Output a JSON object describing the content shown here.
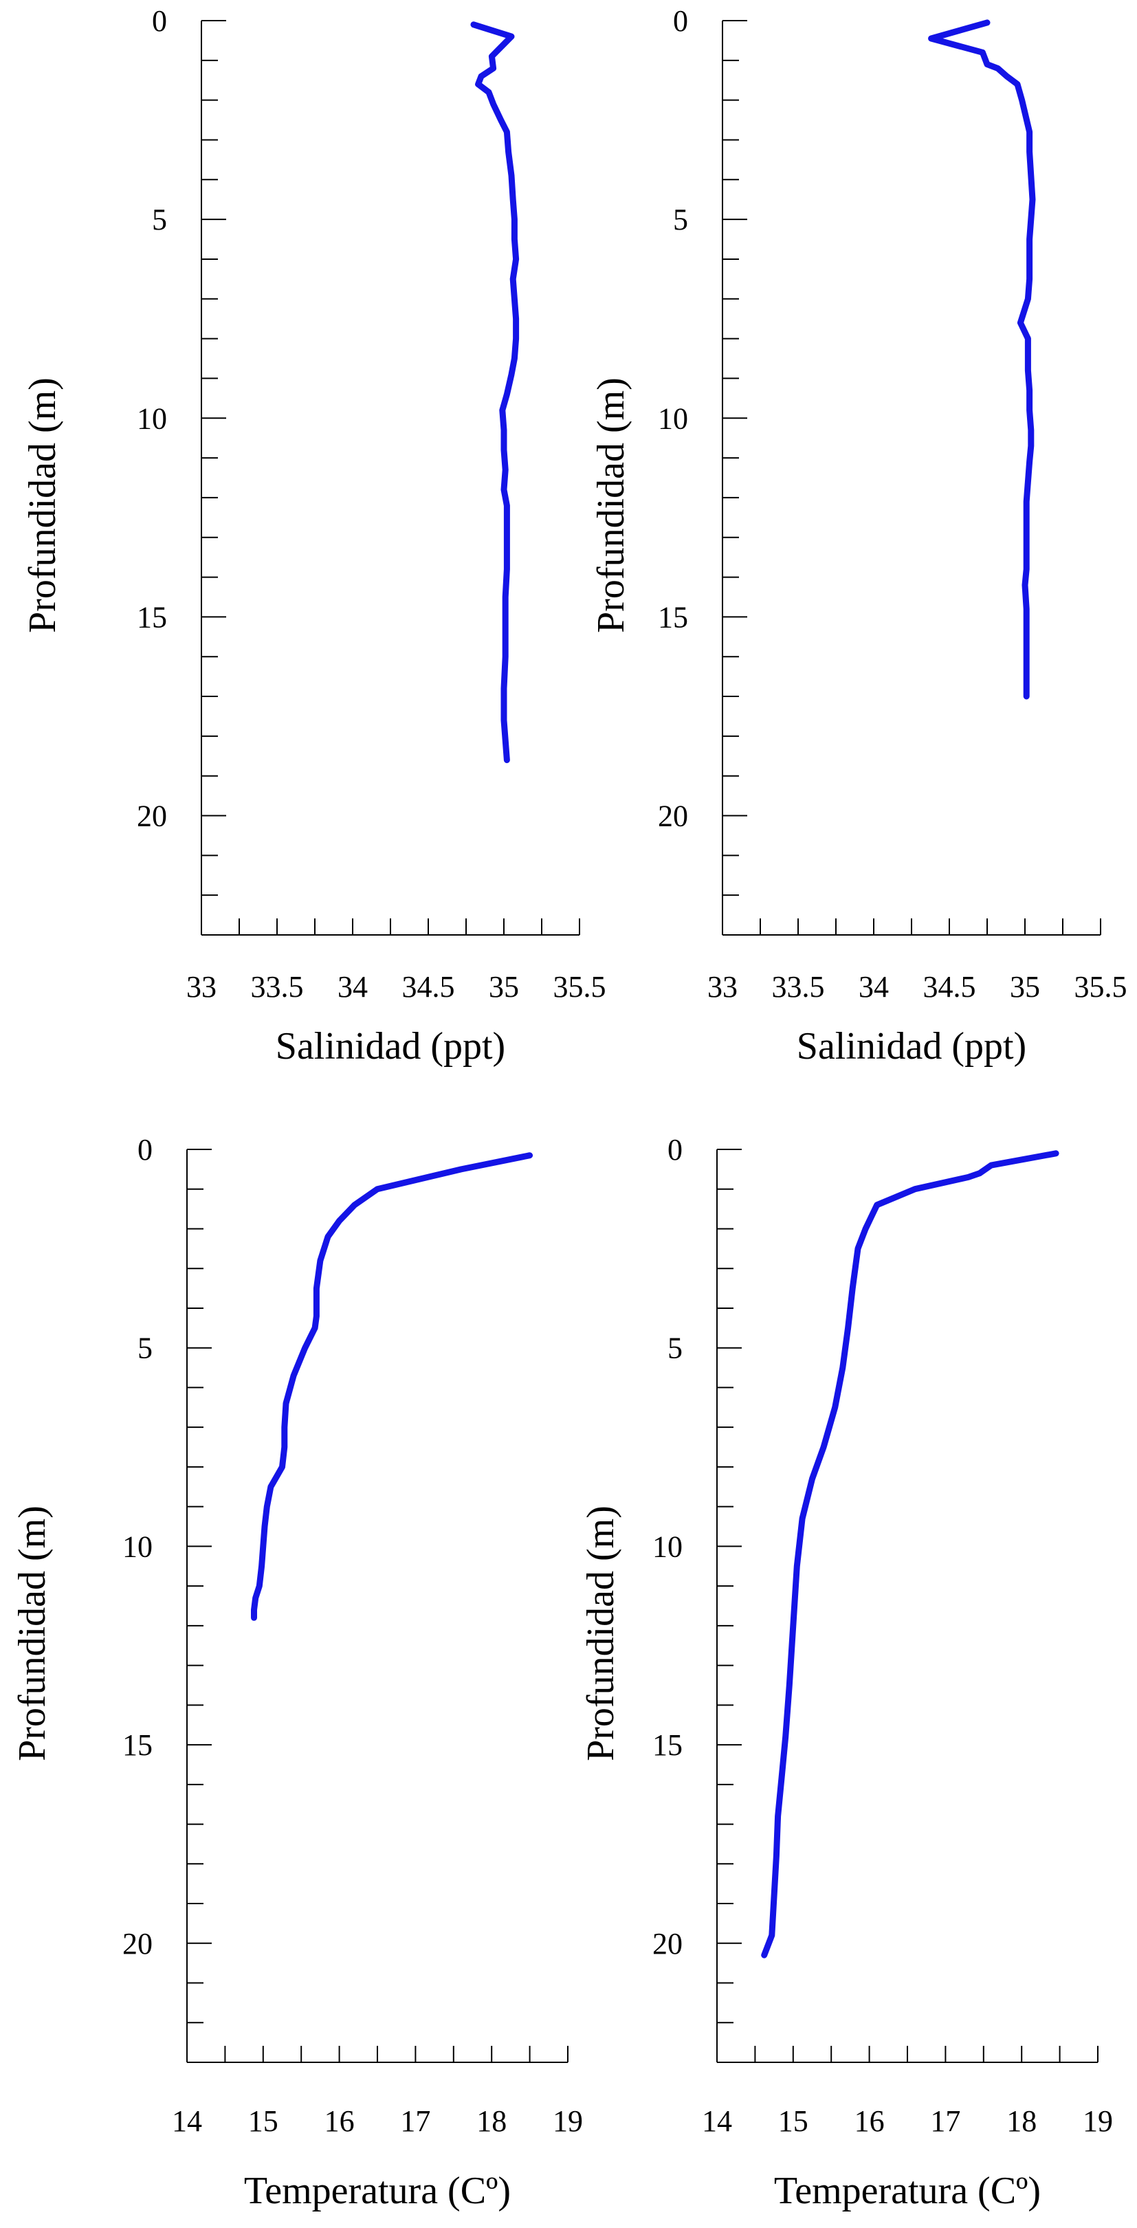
{
  "colors": {
    "series": "#1414e6",
    "axis": "#000000",
    "background": "#ffffff"
  },
  "chart_data": [
    {
      "type": "line",
      "orientation": "depth-profile",
      "xlabel": "Salinidad (ppt)",
      "ylabel": "Profundidad (m)",
      "xlim": [
        33,
        35.5
      ],
      "ylim": [
        0,
        23
      ],
      "y_inverted": true,
      "x_ticks": [
        "33",
        "33.5",
        "34",
        "34.5",
        "35",
        "35.5"
      ],
      "y_ticks": [
        "0",
        "5",
        "10",
        "15",
        "20"
      ],
      "grid": false,
      "series": [
        {
          "x": [
            34.8,
            35.05,
            34.92,
            34.93,
            34.85,
            34.83,
            34.9,
            34.93,
            34.98,
            35.02,
            35.03,
            35.05,
            35.06,
            35.07,
            35.07,
            35.08,
            35.06,
            35.07,
            35.08,
            35.08,
            35.07,
            35.05,
            35.02,
            34.99,
            35.0,
            35.0,
            35.01,
            35.0,
            35.02,
            35.02,
            35.02,
            35.02,
            35.01,
            35.01,
            35.01,
            35.0,
            35.0,
            35.02
          ],
          "y": [
            0.1,
            0.4,
            0.9,
            1.2,
            1.4,
            1.6,
            1.8,
            2.1,
            2.5,
            2.8,
            3.3,
            3.9,
            4.5,
            5.0,
            5.5,
            6.0,
            6.5,
            7.0,
            7.5,
            8.0,
            8.5,
            8.9,
            9.4,
            9.8,
            10.3,
            10.8,
            11.3,
            11.8,
            12.2,
            12.7,
            13.2,
            13.8,
            14.5,
            15.2,
            16.0,
            16.8,
            17.6,
            18.6
          ]
        }
      ]
    },
    {
      "type": "line",
      "orientation": "depth-profile",
      "xlabel": "Salinidad (ppt)",
      "ylabel": "Profundidad (m)",
      "xlim": [
        33,
        35.5
      ],
      "ylim": [
        0,
        23
      ],
      "y_inverted": true,
      "x_ticks": [
        "33",
        "33.5",
        "34",
        "34.5",
        "35",
        "35.5"
      ],
      "y_ticks": [
        "0",
        "5",
        "10",
        "15",
        "20"
      ],
      "grid": false,
      "series": [
        {
          "x": [
            34.75,
            34.38,
            34.72,
            34.75,
            34.82,
            34.88,
            34.95,
            34.98,
            35.03,
            35.03,
            35.04,
            35.05,
            35.04,
            35.03,
            35.03,
            35.03,
            35.02,
            34.97,
            35.02,
            35.02,
            35.02,
            35.03,
            35.03,
            35.04,
            35.04,
            35.03,
            35.02,
            35.01,
            35.01,
            35.01,
            35.01,
            35.01,
            35.0,
            35.01,
            35.01,
            35.01,
            35.01
          ],
          "y": [
            0.05,
            0.45,
            0.8,
            1.1,
            1.2,
            1.4,
            1.6,
            2.0,
            2.8,
            3.3,
            3.9,
            4.5,
            5.0,
            5.5,
            6.0,
            6.5,
            7.0,
            7.6,
            8.0,
            8.4,
            8.8,
            9.3,
            9.8,
            10.3,
            10.7,
            11.1,
            11.6,
            12.1,
            12.5,
            12.9,
            13.4,
            13.8,
            14.2,
            14.8,
            15.4,
            16.2,
            17.0
          ]
        }
      ]
    },
    {
      "type": "line",
      "orientation": "depth-profile",
      "xlabel": "Temperatura (Cº)",
      "ylabel": "Profundidad (m)",
      "xlim": [
        14,
        19
      ],
      "ylim": [
        0,
        23
      ],
      "y_inverted": true,
      "x_ticks": [
        "14",
        "15",
        "16",
        "17",
        "18",
        "19"
      ],
      "y_ticks": [
        "0",
        "5",
        "10",
        "15",
        "20"
      ],
      "grid": false,
      "series": [
        {
          "x": [
            18.5,
            17.6,
            16.5,
            16.2,
            16.0,
            15.85,
            15.75,
            15.7,
            15.7,
            15.68,
            15.55,
            15.4,
            15.3,
            15.28,
            15.28,
            15.25,
            15.1,
            15.05,
            15.02,
            15.0,
            14.98,
            14.95,
            14.9,
            14.88,
            14.88
          ],
          "y": [
            0.15,
            0.5,
            1.0,
            1.4,
            1.8,
            2.2,
            2.8,
            3.5,
            4.2,
            4.5,
            5.0,
            5.7,
            6.4,
            7.0,
            7.5,
            8.0,
            8.5,
            9.0,
            9.5,
            10.0,
            10.5,
            11.0,
            11.3,
            11.6,
            11.8
          ]
        }
      ]
    },
    {
      "type": "line",
      "orientation": "depth-profile",
      "xlabel": "Temperatura (Cº)",
      "ylabel": "Profundidad (m)",
      "xlim": [
        14,
        19
      ],
      "ylim": [
        0,
        23
      ],
      "y_inverted": true,
      "x_ticks": [
        "14",
        "15",
        "16",
        "17",
        "18",
        "19"
      ],
      "y_ticks": [
        "0",
        "5",
        "10",
        "15",
        "20"
      ],
      "grid": false,
      "series": [
        {
          "x": [
            18.45,
            17.6,
            17.45,
            17.3,
            16.6,
            16.1,
            15.95,
            15.85,
            15.78,
            15.72,
            15.65,
            15.55,
            15.4,
            15.25,
            15.12,
            15.05,
            15.0,
            14.95,
            14.9,
            14.85,
            14.8,
            14.78,
            14.75,
            14.72,
            14.62
          ],
          "y": [
            0.1,
            0.4,
            0.6,
            0.7,
            1.0,
            1.4,
            2.0,
            2.5,
            3.5,
            4.5,
            5.5,
            6.5,
            7.5,
            8.3,
            9.3,
            10.5,
            12.0,
            13.5,
            14.8,
            15.8,
            16.8,
            17.8,
            18.8,
            19.8,
            20.3
          ]
        }
      ]
    }
  ]
}
